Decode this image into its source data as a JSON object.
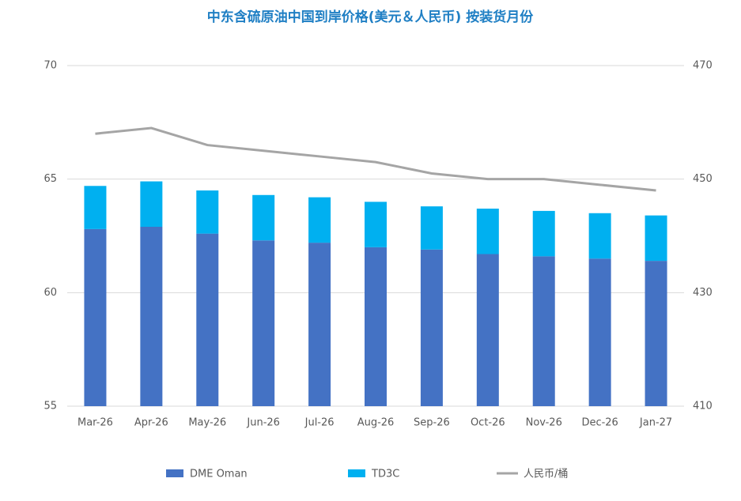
{
  "chart_data": {
    "type": "bar-line",
    "title": "中东含硫原油中国到岸价格(美元＆人民币) 按装货月份",
    "categories": [
      "Mar-26",
      "Apr-26",
      "May-26",
      "Jun-26",
      "Jul-26",
      "Aug-26",
      "Sep-26",
      "Oct-26",
      "Nov-26",
      "Dec-26",
      "Jan-27"
    ],
    "series": [
      {
        "name": "DME Oman",
        "color": "#4472c4",
        "type": "bar",
        "values": [
          62.8,
          62.9,
          62.6,
          62.3,
          62.2,
          62.0,
          61.9,
          61.7,
          61.6,
          61.5,
          61.4
        ]
      },
      {
        "name": "TD3C",
        "color": "#00b0f0",
        "type": "bar",
        "values": [
          1.9,
          2.0,
          1.9,
          2.0,
          2.0,
          2.0,
          1.9,
          2.0,
          2.0,
          2.0,
          2.0
        ]
      },
      {
        "name": "人民币/桶",
        "color": "#a5a5a5",
        "type": "line",
        "axis": "y2",
        "values": [
          458,
          459,
          456,
          455,
          454,
          453,
          451,
          450,
          450,
          449,
          448
        ]
      }
    ],
    "ylim": [
      55,
      70
    ],
    "yticks": [
      55,
      60,
      65,
      70
    ],
    "y2lim": [
      410,
      470
    ],
    "y2ticks": [
      410,
      430,
      450,
      470
    ],
    "grid": true,
    "stacked": true,
    "legend": "bottom"
  }
}
